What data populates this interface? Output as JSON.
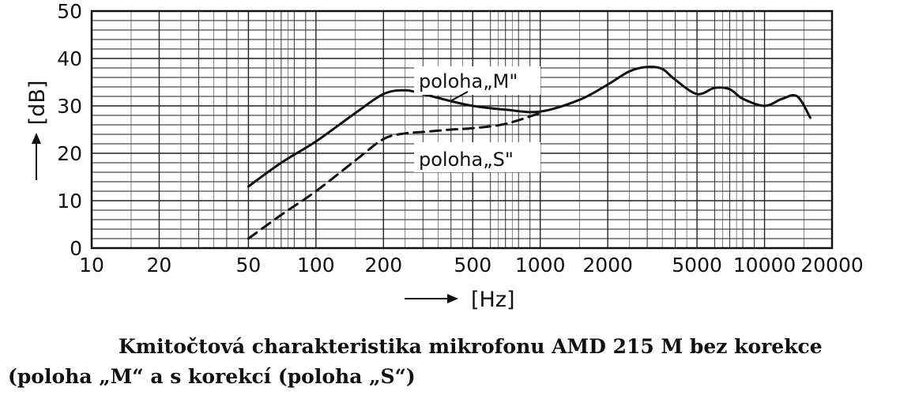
{
  "chart_data": {
    "type": "line",
    "xscale": "log",
    "xlim": [
      10,
      20000
    ],
    "ylim": [
      0,
      50
    ],
    "x_ticks": [
      10,
      20,
      50,
      100,
      200,
      500,
      1000,
      2000,
      5000,
      10000,
      20000
    ],
    "x_tick_labels": [
      "10",
      "20",
      "50",
      "100",
      "200",
      "500",
      "1000",
      "2000",
      "5000",
      "10000",
      "20000"
    ],
    "y_ticks": [
      0,
      10,
      20,
      30,
      40,
      50
    ],
    "y_tick_labels": [
      "0",
      "10",
      "20",
      "30",
      "40",
      "50"
    ],
    "xlabel": "[Hz]",
    "ylabel": "[dB]",
    "grid": true,
    "series": [
      {
        "name": "poloha„M\"",
        "style": "solid",
        "x": [
          50,
          70,
          100,
          150,
          200,
          250,
          300,
          400,
          500,
          700,
          1000,
          1500,
          2000,
          2500,
          3000,
          3500,
          4000,
          5000,
          6000,
          7000,
          8000,
          10000,
          12000,
          14000,
          16000
        ],
        "y": [
          13,
          18,
          22.5,
          28.5,
          32.5,
          33.3,
          32.5,
          31,
          30,
          29.2,
          28.8,
          31.3,
          34.5,
          37.3,
          38.2,
          37.8,
          35.5,
          32.5,
          33.8,
          33.5,
          31.5,
          30,
          31.5,
          32,
          27.5
        ]
      },
      {
        "name": "poloha„S\"",
        "style": "dashed",
        "x": [
          50,
          70,
          100,
          150,
          200,
          250,
          300,
          400,
          500,
          700,
          1000
        ],
        "y": [
          2,
          7,
          12,
          18.5,
          23,
          24.2,
          24.5,
          25,
          25.3,
          26.2,
          28.5
        ]
      }
    ]
  },
  "labels": {
    "series_m": "poloha„M\"",
    "series_s": "poloha„S\""
  },
  "caption": {
    "line1": "Kmitočtová charakteristika mikrofonu AMD 215 M bez korekce",
    "line2": "(poloha „M“ a s korekcí (poloha „S“)"
  }
}
